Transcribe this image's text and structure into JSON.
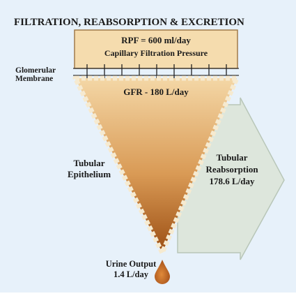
{
  "title": "FILTRATION, REABSORPTION & EXCRETION",
  "top_box": {
    "lines": [
      "RPF = 600 ml/day",
      "Capillary Filtration Pressure"
    ]
  },
  "membrane_label": [
    "Glomerular",
    "Membrane"
  ],
  "gfr_label": "GFR - 180 L/day",
  "epithelium_label": [
    "Tubular",
    "Epithelium"
  ],
  "reabsorption_label": [
    "Tubular",
    "Reabsorption",
    "178.6 L/day"
  ],
  "urine_label": [
    "Urine Output",
    "1.4 L/day"
  ]
}
